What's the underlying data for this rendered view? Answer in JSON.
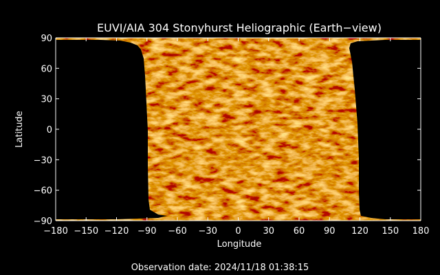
{
  "title": "EUVI/AIA 304 Stonyhurst Heliographic (Earth−view)",
  "xaxis": {
    "label": "Longitude",
    "range": [
      -180,
      180
    ],
    "ticks": [
      "−180",
      "−150",
      "−120",
      "−90",
      "−60",
      "−30",
      "0",
      "30",
      "60",
      "90",
      "120",
      "150",
      "180"
    ]
  },
  "yaxis": {
    "label": "Latitude",
    "range": [
      -90,
      90
    ],
    "ticks": [
      "90",
      "60",
      "30",
      "0",
      "−30",
      "−60",
      "−90"
    ]
  },
  "footer": "Observation date: 2024/11/18 01:38:15",
  "colors": {
    "background": "#000000",
    "axes": "#ffffff",
    "map_base": "#f06a10"
  }
}
